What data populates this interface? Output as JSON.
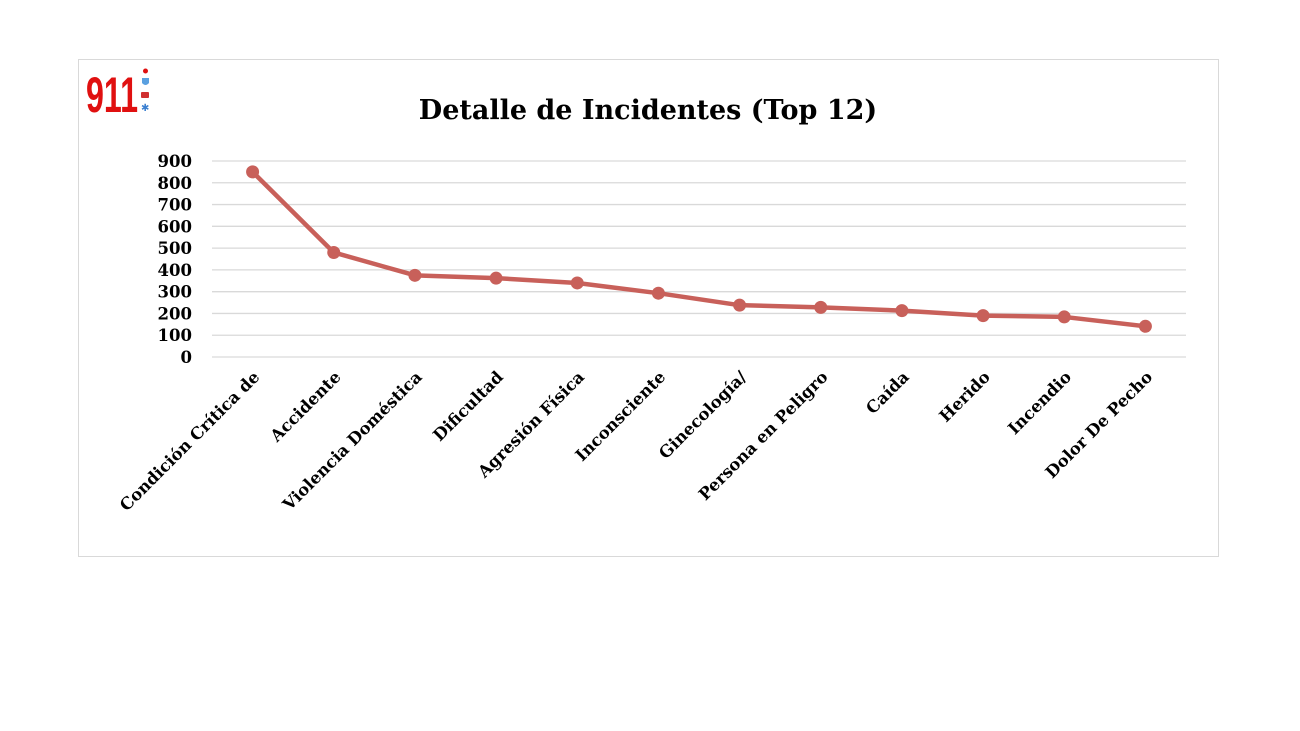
{
  "logo": {
    "text": "911",
    "colors": {
      "digits": "#e01010",
      "shield": "#5aa0e0",
      "truck": "#d03030",
      "star": "#3a7fd0"
    }
  },
  "chart_data": {
    "type": "line",
    "title": "Detalle de Incidentes (Top 12)",
    "xlabel": "",
    "ylabel": "",
    "categories": [
      "Condición Crítica de",
      "Accidente",
      "Violencia Doméstica",
      "Dificultad",
      "Agresión Física",
      "Inconsciente",
      "Ginecología/",
      "Persona en Peligro",
      "Caída",
      "Herido",
      "Incendio",
      "Dolor De Pecho"
    ],
    "series": [
      {
        "values": [
          850,
          480,
          375,
          362,
          340,
          293,
          238,
          228,
          213,
          190,
          184,
          141
        ]
      }
    ],
    "ylim": [
      0,
      900
    ],
    "yticks": [
      "900",
      "800",
      "700",
      "600",
      "500",
      "400",
      "300",
      "200",
      "100",
      "0"
    ],
    "grid": true,
    "legend": "none",
    "line_color": "#c8605a",
    "gridline_color": "#d9d9d9"
  }
}
